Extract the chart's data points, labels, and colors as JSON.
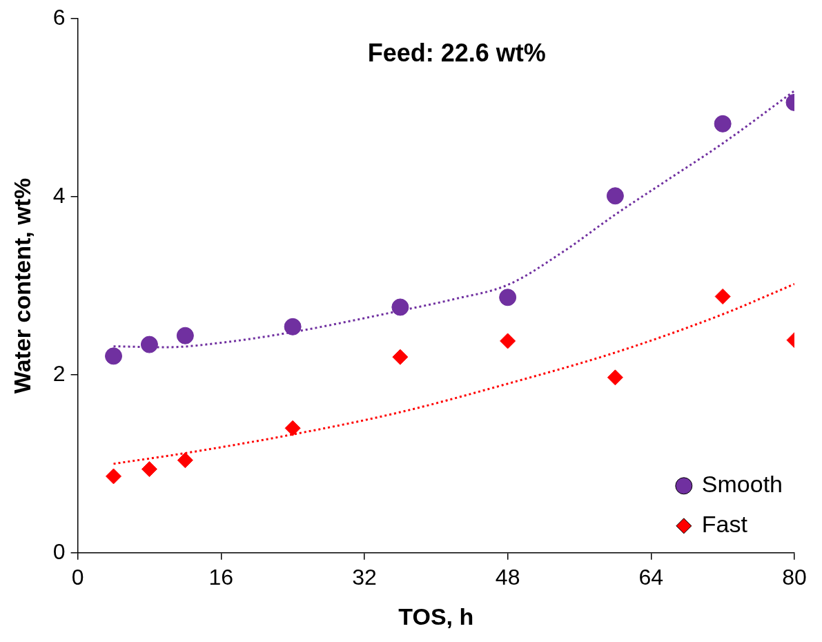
{
  "chart_data": {
    "type": "scatter",
    "xlabel": "TOS, h",
    "ylabel": "Water content, wt%",
    "annotations": [
      "Feed: 22.6 wt%"
    ],
    "xlim": [
      0,
      80
    ],
    "xticks": [
      0,
      16,
      32,
      48,
      64,
      80
    ],
    "ylim": [
      0,
      6
    ],
    "yticks": [
      0,
      2,
      4,
      6
    ],
    "grid": false,
    "legend": "bottom right",
    "series": [
      {
        "name": "Smooth",
        "type": "scatter",
        "marker": "circle",
        "color": "#7030a0",
        "x": [
          4,
          8,
          12,
          24,
          36,
          48,
          60,
          72,
          80
        ],
        "values": [
          2.21,
          2.34,
          2.44,
          2.54,
          2.76,
          2.87,
          4.01,
          4.82,
          5.06
        ]
      },
      {
        "name": "Fast",
        "type": "scatter",
        "marker": "diamond",
        "color": "#ff0000",
        "x": [
          4,
          8,
          12,
          24,
          36,
          48,
          60,
          72,
          80
        ],
        "values": [
          0.86,
          0.94,
          1.04,
          1.4,
          2.2,
          2.38,
          1.97,
          2.88,
          2.39
        ]
      },
      {
        "type": "line",
        "marker": "none",
        "line_style": "dotted",
        "color": "#7030a0",
        "x": [
          4,
          10,
          16,
          24,
          36,
          42,
          48,
          54,
          60,
          66,
          72,
          80
        ],
        "values": [
          2.32,
          2.31,
          2.36,
          2.48,
          2.72,
          2.85,
          3.01,
          3.37,
          3.8,
          4.2,
          4.6,
          5.19
        ]
      },
      {
        "type": "line",
        "marker": "none",
        "line_style": "dotted",
        "color": "#ff0000",
        "x": [
          4,
          12,
          24,
          36,
          48,
          60,
          72,
          80
        ],
        "values": [
          1.0,
          1.12,
          1.33,
          1.58,
          1.9,
          2.25,
          2.68,
          3.02
        ]
      }
    ]
  }
}
